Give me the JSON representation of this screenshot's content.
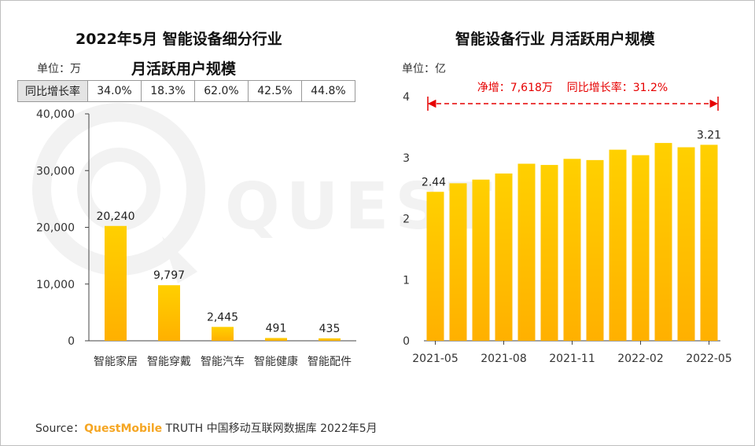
{
  "left": {
    "title_line1": "2022年5月 智能设备细分行业",
    "title_line2": "月活跃用户规模",
    "unit": "单位：万",
    "growth_label": "同比增长率",
    "growth_values": [
      "34.0%",
      "18.3%",
      "62.0%",
      "42.5%",
      "44.8%"
    ]
  },
  "right": {
    "title": "智能设备行业 月活跃用户规模",
    "unit": "单位：亿",
    "annotation": "净增：7,618万    同比增长率：31.2%"
  },
  "source": {
    "prefix": "Source：",
    "brand": "QuestMobile",
    "suffix": " TRUTH 中国移动互联网数据库 2022年5月"
  },
  "colors": {
    "bar_top": "#ffd000",
    "bar_bottom": "#ffb000",
    "annotation": "#e60000",
    "axis": "#444444"
  },
  "chart_data": [
    {
      "type": "bar",
      "categories": [
        "智能家居",
        "智能穿戴",
        "智能汽车",
        "智能健康",
        "智能配件"
      ],
      "values": [
        20240,
        9797,
        2445,
        491,
        435
      ],
      "data_labels": [
        "20,240",
        "9,797",
        "2,445",
        "491",
        "435"
      ],
      "ylim": [
        0,
        40000
      ],
      "yticks": [
        0,
        10000,
        20000,
        30000,
        40000
      ],
      "ytick_labels": [
        "0",
        "10,000",
        "20,000",
        "30,000",
        "40,000"
      ],
      "grid": false
    },
    {
      "type": "bar",
      "categories": [
        "2021-05",
        "2021-06",
        "2021-07",
        "2021-08",
        "2021-09",
        "2021-10",
        "2021-11",
        "2021-12",
        "2022-01",
        "2022-02",
        "2022-03",
        "2022-04",
        "2022-05"
      ],
      "values": [
        2.44,
        2.58,
        2.64,
        2.74,
        2.9,
        2.88,
        2.98,
        2.96,
        3.13,
        3.04,
        3.24,
        3.17,
        3.21
      ],
      "xtick_labels": [
        "2021-05",
        "2021-08",
        "2021-11",
        "2022-02",
        "2022-05"
      ],
      "xtick_categories": [
        "2021-05",
        "2021-08",
        "2021-11",
        "2022-02",
        "2022-05"
      ],
      "data_labels": {
        "2021-05": "2.44",
        "2022-05": "3.21"
      },
      "ylim": [
        0,
        4
      ],
      "yticks": [
        0,
        1,
        2,
        3,
        4
      ],
      "ytick_labels": [
        "0",
        "1",
        "2",
        "3",
        "4"
      ],
      "grid": false
    }
  ]
}
